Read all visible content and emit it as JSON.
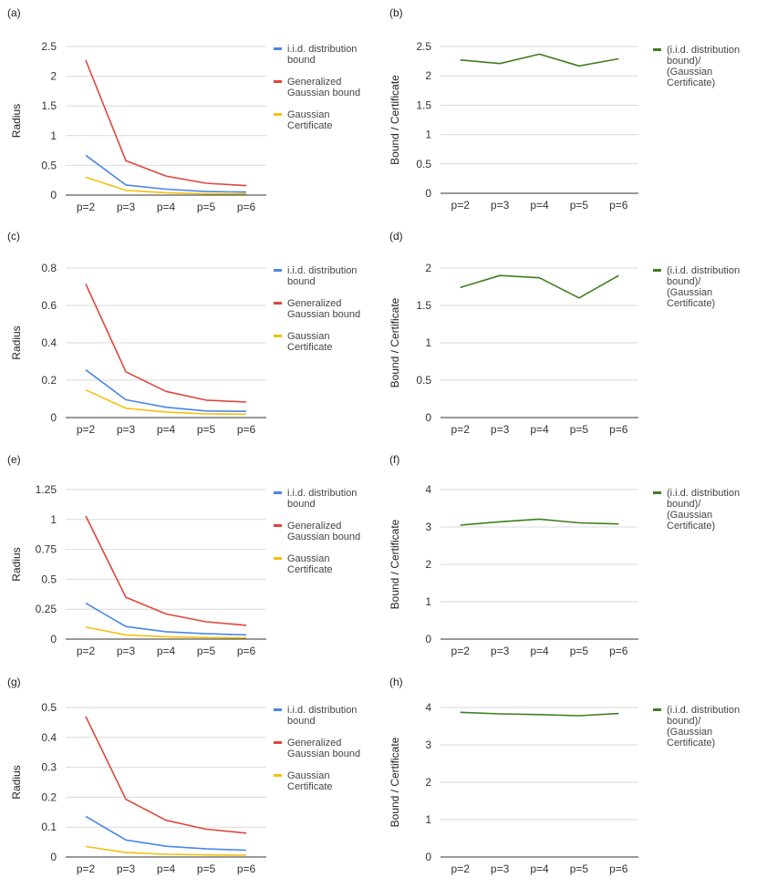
{
  "chart_data": [
    {
      "panel_label": "(a)",
      "type": "line",
      "categories": [
        "p=2",
        "p=3",
        "p=4",
        "p=5",
        "p=6"
      ],
      "ylabel": "Radius",
      "ylim": [
        0,
        2.5
      ],
      "yticks": [
        0,
        0.5,
        1,
        1.5,
        2,
        2.5
      ],
      "ytick_labels": [
        "0",
        "0.5",
        "1",
        "1.5",
        "2",
        "2.5"
      ],
      "grid": true,
      "legend_position": "right",
      "series": [
        {
          "name": "i.i.d. distribution bound",
          "legend_lines": [
            "i.i.d. distribution",
            "bound"
          ],
          "color": "#4a86e8",
          "values": [
            0.67,
            0.17,
            0.1,
            0.06,
            0.05
          ]
        },
        {
          "name": "Generalized Gaussian bound",
          "legend_lines": [
            "Generalized",
            "Gaussian bound"
          ],
          "color": "#e0463c",
          "values": [
            2.27,
            0.58,
            0.32,
            0.2,
            0.16
          ]
        },
        {
          "name": "Gaussian Certificate",
          "legend_lines": [
            "Gaussian",
            "Certificate"
          ],
          "color": "#f2c10f",
          "values": [
            0.3,
            0.08,
            0.04,
            0.02,
            0.02
          ]
        }
      ]
    },
    {
      "panel_label": "(b)",
      "type": "line",
      "categories": [
        "p=2",
        "p=3",
        "p=4",
        "p=5",
        "p=6"
      ],
      "ylabel": "Bound / Certificate",
      "ylim": [
        0,
        2.5
      ],
      "yticks": [
        0,
        0.5,
        1,
        1.5,
        2,
        2.5
      ],
      "ytick_labels": [
        "0",
        "0.5",
        "1",
        "1.5",
        "2",
        "2.5"
      ],
      "grid": true,
      "legend_position": "right",
      "series": [
        {
          "name": "(i.i.d. distribution bound)/ (Gaussian Certificate)",
          "legend_lines": [
            "(i.i.d. distribution",
            "bound)/",
            "(Gaussian",
            "Certificate)"
          ],
          "color": "#3f7d20",
          "values": [
            2.27,
            2.21,
            2.37,
            2.17,
            2.29
          ]
        }
      ]
    },
    {
      "panel_label": "(c)",
      "type": "line",
      "categories": [
        "p=2",
        "p=3",
        "p=4",
        "p=5",
        "p=6"
      ],
      "ylabel": "Radius",
      "ylim": [
        0,
        0.8
      ],
      "yticks": [
        0,
        0.2,
        0.4,
        0.6,
        0.8
      ],
      "ytick_labels": [
        "0",
        "0.2",
        "0.4",
        "0.6",
        "0.8"
      ],
      "grid": true,
      "legend_position": "right",
      "series": [
        {
          "name": "i.i.d. distribution bound",
          "legend_lines": [
            "i.i.d. distribution",
            "bound"
          ],
          "color": "#4a86e8",
          "values": [
            0.255,
            0.095,
            0.055,
            0.035,
            0.033
          ]
        },
        {
          "name": "Generalized Gaussian bound",
          "legend_lines": [
            "Generalized",
            "Gaussian bound"
          ],
          "color": "#e0463c",
          "values": [
            0.715,
            0.245,
            0.14,
            0.093,
            0.083
          ]
        },
        {
          "name": "Gaussian Certificate",
          "legend_lines": [
            "Gaussian",
            "Certificate"
          ],
          "color": "#f2c10f",
          "values": [
            0.148,
            0.05,
            0.03,
            0.02,
            0.018
          ]
        }
      ]
    },
    {
      "panel_label": "(d)",
      "type": "line",
      "categories": [
        "p=2",
        "p=3",
        "p=4",
        "p=5",
        "p=6"
      ],
      "ylabel": "Bound / Certificate",
      "ylim": [
        0,
        2
      ],
      "yticks": [
        0,
        0.5,
        1,
        1.5,
        2
      ],
      "ytick_labels": [
        "0",
        "0.5",
        "1",
        "1.5",
        "2"
      ],
      "grid": true,
      "legend_position": "right",
      "series": [
        {
          "name": "(i.i.d. distribution bound)/ (Gaussian Certificate)",
          "legend_lines": [
            "(i.i.d. distribution",
            "bound)/",
            "(Gaussian",
            "Certificate)"
          ],
          "color": "#3f7d20",
          "values": [
            1.74,
            1.9,
            1.87,
            1.6,
            1.9
          ]
        }
      ]
    },
    {
      "panel_label": "(e)",
      "type": "line",
      "categories": [
        "p=2",
        "p=3",
        "p=4",
        "p=5",
        "p=6"
      ],
      "ylabel": "Radius",
      "ylim": [
        0,
        1.25
      ],
      "yticks": [
        0,
        0.25,
        0.5,
        0.75,
        1,
        1.25
      ],
      "ytick_labels": [
        "0",
        "0.25",
        "0.5",
        "0.75",
        "1",
        "1.25"
      ],
      "grid": true,
      "legend_position": "right",
      "series": [
        {
          "name": "i.i.d. distribution bound",
          "legend_lines": [
            "i.i.d. distribution",
            "bound"
          ],
          "color": "#4a86e8",
          "values": [
            0.3,
            0.105,
            0.062,
            0.045,
            0.036
          ]
        },
        {
          "name": "Generalized Gaussian bound",
          "legend_lines": [
            "Generalized",
            "Gaussian bound"
          ],
          "color": "#e0463c",
          "values": [
            1.03,
            0.35,
            0.21,
            0.145,
            0.115
          ]
        },
        {
          "name": "Gaussian Certificate",
          "legend_lines": [
            "Gaussian",
            "Certificate"
          ],
          "color": "#f2c10f",
          "values": [
            0.1,
            0.035,
            0.02,
            0.013,
            0.01
          ]
        }
      ]
    },
    {
      "panel_label": "(f)",
      "type": "line",
      "categories": [
        "p=2",
        "p=3",
        "p=4",
        "p=5",
        "p=6"
      ],
      "ylabel": "Bound / Certificate",
      "ylim": [
        0,
        4
      ],
      "yticks": [
        0,
        1,
        2,
        3,
        4
      ],
      "ytick_labels": [
        "0",
        "1",
        "2",
        "3",
        "4"
      ],
      "grid": true,
      "legend_position": "right",
      "series": [
        {
          "name": "(i.i.d. distribution bound)/ (Gaussian Certificate)",
          "legend_lines": [
            "(i.i.d. distribution",
            "bound)/",
            "(Gaussian",
            "Certificate)"
          ],
          "color": "#3f7d20",
          "values": [
            3.05,
            3.14,
            3.21,
            3.11,
            3.08
          ]
        }
      ]
    },
    {
      "panel_label": "(g)",
      "type": "line",
      "categories": [
        "p=2",
        "p=3",
        "p=4",
        "p=5",
        "p=6"
      ],
      "ylabel": "Radius",
      "ylim": [
        0,
        0.5
      ],
      "yticks": [
        0,
        0.1,
        0.2,
        0.3,
        0.4,
        0.5
      ],
      "ytick_labels": [
        "0",
        "0.1",
        "0.2",
        "0.3",
        "0.4",
        "0.5"
      ],
      "grid": true,
      "legend_position": "right",
      "series": [
        {
          "name": "i.i.d. distribution bound",
          "legend_lines": [
            "i.i.d. distribution",
            "bound"
          ],
          "color": "#4a86e8",
          "values": [
            0.136,
            0.057,
            0.036,
            0.027,
            0.023
          ]
        },
        {
          "name": "Generalized Gaussian bound",
          "legend_lines": [
            "Generalized",
            "Gaussian bound"
          ],
          "color": "#e0463c",
          "values": [
            0.47,
            0.193,
            0.123,
            0.093,
            0.08
          ]
        },
        {
          "name": "Gaussian Certificate",
          "legend_lines": [
            "Gaussian",
            "Certificate"
          ],
          "color": "#f2c10f",
          "values": [
            0.035,
            0.015,
            0.009,
            0.007,
            0.006
          ]
        }
      ]
    },
    {
      "panel_label": "(h)",
      "type": "line",
      "categories": [
        "p=2",
        "p=3",
        "p=4",
        "p=5",
        "p=6"
      ],
      "ylabel": "Bound / Certificate",
      "ylim": [
        0,
        4
      ],
      "yticks": [
        0,
        1,
        2,
        3,
        4
      ],
      "ytick_labels": [
        "0",
        "1",
        "2",
        "3",
        "4"
      ],
      "grid": true,
      "legend_position": "right",
      "series": [
        {
          "name": "(i.i.d. distribution bound)/ (Gaussian Certificate)",
          "legend_lines": [
            "(i.i.d. distribution",
            "bound)/",
            "(Gaussian",
            "Certificate)"
          ],
          "color": "#3f7d20",
          "values": [
            3.87,
            3.83,
            3.81,
            3.78,
            3.84
          ]
        }
      ]
    }
  ]
}
